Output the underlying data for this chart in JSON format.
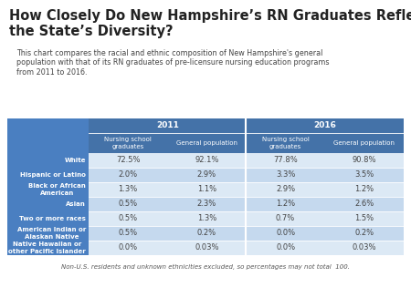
{
  "title": "How Closely Do New Hampshire’s RN Graduates Reflect\nthe State’s Diversity?",
  "subtitle": "This chart compares the racial and ethnic composition of New Hampshire's general\npopulation with that of its RN graduates of pre-licensure nursing education programs\nfrom 2011 to 2016.",
  "footnote": "Non-U.S. residents and unknown ethnicities excluded, so percentages may not total  100.",
  "col_headers_level1": [
    "2011",
    "2016"
  ],
  "col_headers_level2": [
    "Nursing school\ngraduates",
    "General population",
    "Nursing school\ngraduates",
    "General population"
  ],
  "row_labels": [
    "White",
    "Hispanic or Latino",
    "Black or African\nAmerican",
    "Asian",
    "Two or more races",
    "American Indian or\nAlaskan Native",
    "Native Hawaiian or\nother Pacific Islander"
  ],
  "data": [
    [
      "72.5%",
      "92.1%",
      "77.8%",
      "90.8%"
    ],
    [
      "2.0%",
      "2.9%",
      "3.3%",
      "3.5%"
    ],
    [
      "1.3%",
      "1.1%",
      "2.9%",
      "1.2%"
    ],
    [
      "0.5%",
      "2.3%",
      "1.2%",
      "2.6%"
    ],
    [
      "0.5%",
      "1.3%",
      "0.7%",
      "1.5%"
    ],
    [
      "0.5%",
      "0.2%",
      "0.0%",
      "0.2%"
    ],
    [
      "0.0%",
      "0.03%",
      "0.0%",
      "0.03%"
    ]
  ],
  "bg_color_header": "#4472a8",
  "bg_color_row_label": "#4472a8",
  "bg_color_data_light": "#dce9f5",
  "bg_color_data_dark": "#c5d9ee",
  "text_color_header": "#ffffff",
  "text_color_row_label": "#ffffff",
  "text_color_data": "#444444",
  "outer_bg": "#4a7fc1",
  "title_color": "#222222",
  "subtitle_color": "#444444",
  "footnote_color": "#555555"
}
